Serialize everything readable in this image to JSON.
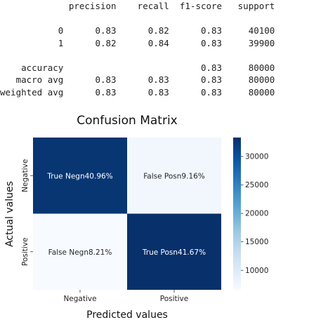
{
  "report": {
    "header": [
      "precision",
      "recall",
      "f1-score",
      "support"
    ],
    "rows": [
      {
        "label": "0",
        "precision": "0.83",
        "recall": "0.82",
        "f1": "0.83",
        "support": "40100"
      },
      {
        "label": "1",
        "precision": "0.82",
        "recall": "0.84",
        "f1": "0.83",
        "support": "39900"
      },
      null,
      {
        "label": "accuracy",
        "precision": "",
        "recall": "",
        "f1": "0.83",
        "support": "80000"
      },
      {
        "label": "macro avg",
        "precision": "0.83",
        "recall": "0.83",
        "f1": "0.83",
        "support": "80000"
      },
      {
        "label": "weighted avg",
        "precision": "0.83",
        "recall": "0.83",
        "f1": "0.83",
        "support": "80000"
      }
    ]
  },
  "chart_data": {
    "type": "heatmap",
    "title": "Confusion Matrix",
    "xlabel": "Predicted values",
    "ylabel": "Actual values",
    "x_categories": [
      "Negative",
      "Positive"
    ],
    "y_categories": [
      "Negative",
      "Positive"
    ],
    "values": [
      [
        32768,
        7332
      ],
      [
        6568,
        33332
      ]
    ],
    "cell_labels": [
      [
        "True Negn40.96%",
        "False Posn9.16%"
      ],
      [
        "False Negn8.21%",
        "True Posn41.67%"
      ]
    ],
    "colormap": "Blues",
    "colorbar": {
      "min": 6568,
      "max": 33332,
      "ticks": [
        10000,
        15000,
        20000,
        25000,
        30000
      ]
    },
    "colors": {
      "low": "#f7fbff",
      "mid": "#6baed6",
      "high": "#08306b"
    }
  }
}
